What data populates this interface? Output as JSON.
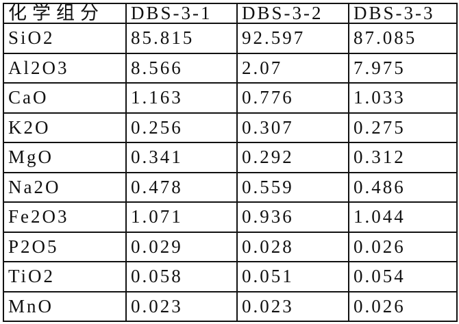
{
  "table": {
    "header": [
      "化学组分",
      "DBS-3-1",
      "DBS-3-2",
      "DBS-3-3"
    ],
    "rows": [
      [
        "SiO2",
        "85.815",
        "92.597",
        "87.085"
      ],
      [
        "Al2O3",
        "8.566",
        "2.07",
        "7.975"
      ],
      [
        "CaO",
        "1.163",
        "0.776",
        "1.033"
      ],
      [
        "K2O",
        "0.256",
        "0.307",
        "0.275"
      ],
      [
        "MgO",
        "0.341",
        "0.292",
        "0.312"
      ],
      [
        "Na2O",
        "0.478",
        "0.559",
        "0.486"
      ],
      [
        "Fe2O3",
        "1.071",
        "0.936",
        "1.044"
      ],
      [
        "P2O5",
        "0.029",
        "0.028",
        "0.026"
      ],
      [
        "TiO2",
        "0.058",
        "0.051",
        "0.054"
      ],
      [
        "MnO",
        "0.023",
        "0.023",
        "0.026"
      ]
    ]
  }
}
